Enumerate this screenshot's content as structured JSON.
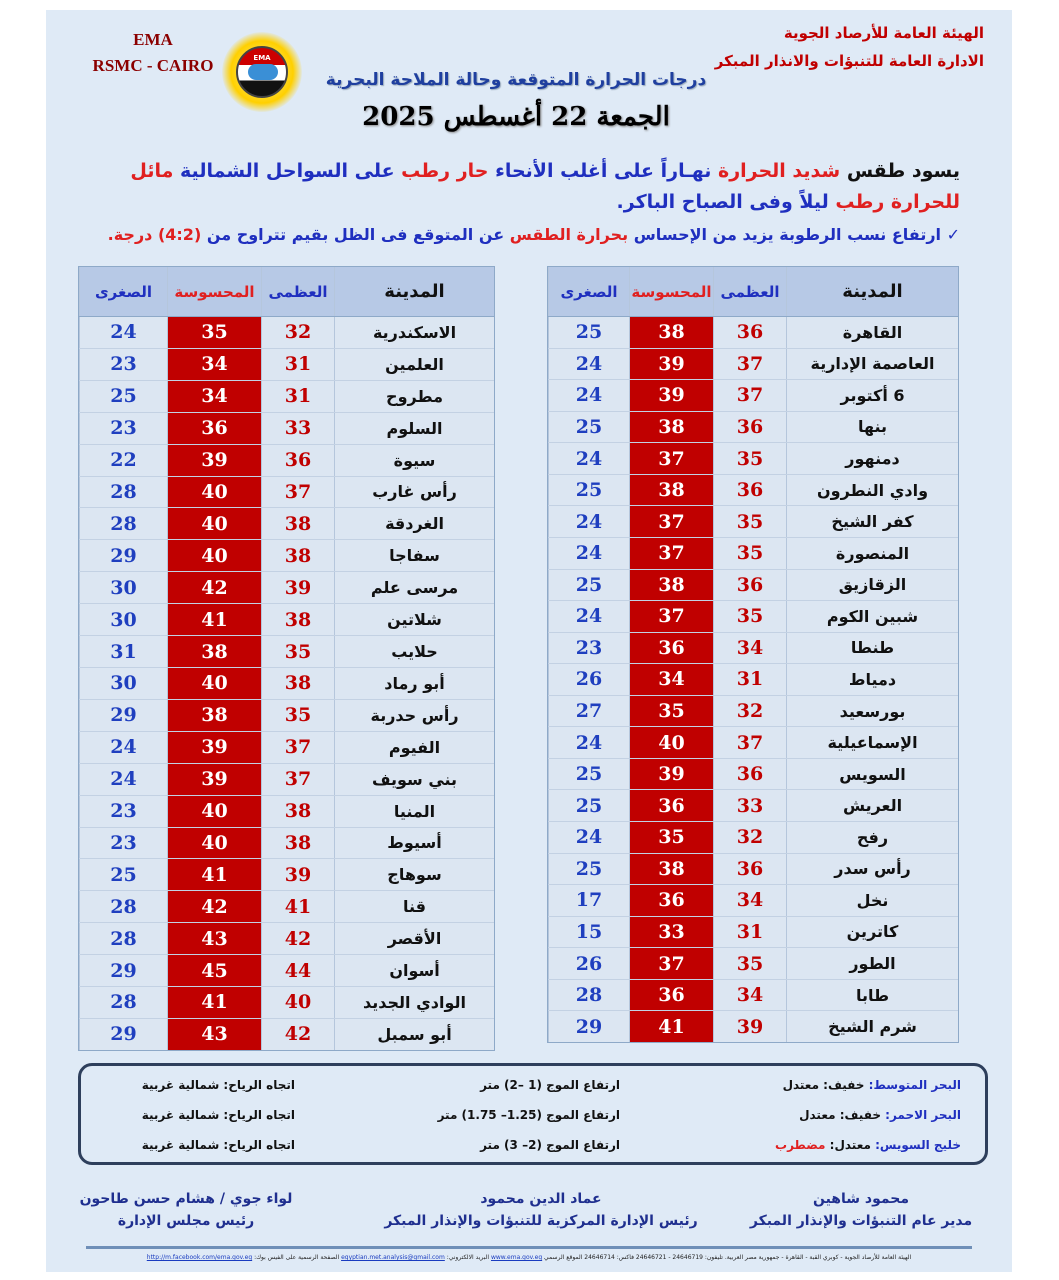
{
  "header": {
    "org_line1": "الهيئة العامة للأرصاد الجوية",
    "org_line2": "الادارة العامة للتنبؤات والانذار المبكر",
    "ema": "EMA",
    "rsmc": "RSMC - CAIRO",
    "logo_text": "EMA",
    "title": "درجات الحرارة المتوقعة وحالة الملاحة البحرية",
    "date": "الجمعة 22 أغسطس 2025"
  },
  "summary": {
    "segments": [
      {
        "t": "يسود طقس ",
        "c": "black"
      },
      {
        "t": "شديد الحرارة",
        "c": "red"
      },
      {
        "t": " نهـاراً على أغلب الأنحاء ",
        "c": "blue"
      },
      {
        "t": "حار رطب",
        "c": "red"
      },
      {
        "t": " على السواحل الشمالية ",
        "c": "blue"
      },
      {
        "t": "مائل للحرارة رطب",
        "c": "red"
      },
      {
        "t": " ليلاً وفى الصباح الباكر.",
        "c": "blue"
      }
    ],
    "bullet_segments": [
      {
        "t": "✓ ",
        "c": "blue"
      },
      {
        "t": "ارتفاع نسب الرطوبة يزيد من الإحساس ",
        "c": "blue"
      },
      {
        "t": "بحرارة الطقس",
        "c": "red"
      },
      {
        "t": " عن المتوقع فى الظل بقيم تتراوح من ",
        "c": "blue"
      },
      {
        "t": "(4:2) درجة.",
        "c": "red"
      }
    ]
  },
  "columns": {
    "city": "المدينة",
    "max": "العظمى",
    "feel": "المحسوسة",
    "min": "الصغرى"
  },
  "colors": {
    "feel_bg": "#c00000",
    "max_text": "#c00000",
    "min_text": "#1f3fbf",
    "header_bg": "#b7c9e6",
    "page_bg": "#dfeaf6"
  },
  "table_right": [
    [
      "القاهرة",
      36,
      38,
      25
    ],
    [
      "العاصمة الإدارية",
      37,
      39,
      24
    ],
    [
      "6 أكتوبر",
      37,
      39,
      24
    ],
    [
      "بنها",
      36,
      38,
      25
    ],
    [
      "دمنهور",
      35,
      37,
      24
    ],
    [
      "وادي النطرون",
      36,
      38,
      25
    ],
    [
      "كفر الشيخ",
      35,
      37,
      24
    ],
    [
      "المنصورة",
      35,
      37,
      24
    ],
    [
      "الزقازيق",
      36,
      38,
      25
    ],
    [
      "شبين الكوم",
      35,
      37,
      24
    ],
    [
      "طنطا",
      34,
      36,
      23
    ],
    [
      "دمياط",
      31,
      34,
      26
    ],
    [
      "بورسعيد",
      32,
      35,
      27
    ],
    [
      "الإسماعيلية",
      37,
      40,
      24
    ],
    [
      "السويس",
      36,
      39,
      25
    ],
    [
      "العريش",
      33,
      36,
      25
    ],
    [
      "رفح",
      32,
      35,
      24
    ],
    [
      "رأس سدر",
      36,
      38,
      25
    ],
    [
      "نخل",
      34,
      36,
      17
    ],
    [
      "كاترين",
      31,
      33,
      15
    ],
    [
      "الطور",
      35,
      37,
      26
    ],
    [
      "طابا",
      34,
      36,
      28
    ],
    [
      "شرم الشيخ",
      39,
      41,
      29
    ]
  ],
  "table_left": [
    [
      "الاسكندرية",
      32,
      35,
      24
    ],
    [
      "العلمين",
      31,
      34,
      23
    ],
    [
      "مطروح",
      31,
      34,
      25
    ],
    [
      "السلوم",
      33,
      36,
      23
    ],
    [
      "سيوة",
      36,
      39,
      22
    ],
    [
      "رأس غارب",
      37,
      40,
      28
    ],
    [
      "الغردقة",
      38,
      40,
      28
    ],
    [
      "سفاجا",
      38,
      40,
      29
    ],
    [
      "مرسى علم",
      39,
      42,
      30
    ],
    [
      "شلاتين",
      38,
      41,
      30
    ],
    [
      "حلايب",
      35,
      38,
      31
    ],
    [
      "أبو رماد",
      38,
      40,
      30
    ],
    [
      "رأس حدربة",
      35,
      38,
      29
    ],
    [
      "الفيوم",
      37,
      39,
      24
    ],
    [
      "بني سويف",
      37,
      39,
      24
    ],
    [
      "المنيا",
      38,
      40,
      23
    ],
    [
      "أسيوط",
      38,
      40,
      23
    ],
    [
      "سوهاج",
      39,
      41,
      25
    ],
    [
      "قنا",
      41,
      42,
      28
    ],
    [
      "الأقصر",
      42,
      43,
      28
    ],
    [
      "أسوان",
      44,
      45,
      29
    ],
    [
      "الوادي الجديد",
      40,
      41,
      28
    ],
    [
      "أبو سمبل",
      42,
      43,
      29
    ]
  ],
  "sea": [
    {
      "name": "البحر المتوسط:",
      "state": "خفيف: معتدل",
      "state_alert": "",
      "wave": "ارتفاع الموج (1 –2) متر",
      "wind": "اتجاه الرياح: شمالية غربية"
    },
    {
      "name": "البحر الاحمر:",
      "state": "خفيف: معتدل",
      "state_alert": "",
      "wave": "ارتفاع الموج (1.25– 1.75) متر",
      "wind": "اتجاه الرياح: شمالية غربية"
    },
    {
      "name": "خليج السويس:",
      "state": "معتدل: ",
      "state_alert": "مضطرب",
      "wave": "ارتفاع الموج (2– 3) متر",
      "wind": "اتجاه الرياح: شمالية غربية"
    }
  ],
  "signatures": [
    {
      "name": "محمود شاهين",
      "title": "مدير عام التنبؤات والإنذار المبكر"
    },
    {
      "name": "عماد الدين محمود",
      "title": "رئيس الإدارة المركزية للتنبؤات والإنذار المبكر"
    },
    {
      "name": "لواء جوي / هشام حسن طاحون",
      "title": "رئيس مجلس الإدارة"
    }
  ],
  "footer": {
    "address": "الهيئة العامة للأرصاد الجوية - كوبري القبة - القاهرة - جمهورية مصر العربية. تليفون: 24646719 - 24646721 فاكس: 24646714 الموقع الرسمي",
    "site": "www.ema.gov.eg",
    "email_label": "البريد الالكتروني:",
    "email": "egyptian.met.analysis@gmail.com",
    "fb_label": "الصفحة الرسمية على الفيس بوك:",
    "fb": "http://m.facebook.com/ema.gov.eg"
  }
}
